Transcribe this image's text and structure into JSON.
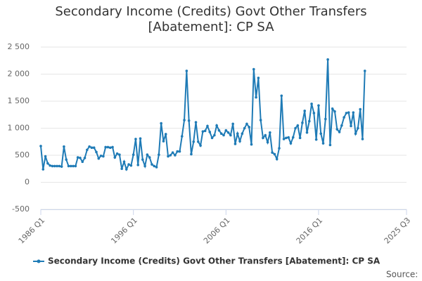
{
  "chart_data": {
    "type": "line",
    "title": "Secondary Income (Credits) Govt Other Transfers [Abatement]: CP SA",
    "source": "Source:",
    "x": [
      "1986 Q1",
      "1986 Q2",
      "1986 Q3",
      "1986 Q4",
      "1987 Q1",
      "1987 Q2",
      "1987 Q3",
      "1987 Q4",
      "1988 Q1",
      "1988 Q2",
      "1988 Q3",
      "1988 Q4",
      "1989 Q1",
      "1989 Q2",
      "1989 Q3",
      "1989 Q4",
      "1990 Q1",
      "1990 Q2",
      "1990 Q3",
      "1990 Q4",
      "1991 Q1",
      "1991 Q2",
      "1991 Q3",
      "1991 Q4",
      "1992 Q1",
      "1992 Q2",
      "1992 Q3",
      "1992 Q4",
      "1993 Q1",
      "1993 Q2",
      "1993 Q3",
      "1993 Q4",
      "1994 Q1",
      "1994 Q2",
      "1994 Q3",
      "1994 Q4",
      "1995 Q1",
      "1995 Q2",
      "1995 Q3",
      "1995 Q4",
      "1996 Q1",
      "1996 Q2",
      "1996 Q3",
      "1996 Q4",
      "1997 Q1",
      "1997 Q2",
      "1997 Q3",
      "1997 Q4",
      "1998 Q1",
      "1998 Q2",
      "1998 Q3",
      "1998 Q4",
      "1999 Q1",
      "1999 Q2",
      "1999 Q3",
      "1999 Q4",
      "2000 Q1",
      "2000 Q2",
      "2000 Q3",
      "2000 Q4",
      "2001 Q1",
      "2001 Q2",
      "2001 Q3",
      "2001 Q4",
      "2002 Q1",
      "2002 Q2",
      "2002 Q3",
      "2002 Q4",
      "2003 Q1",
      "2003 Q2",
      "2003 Q3",
      "2003 Q4",
      "2004 Q1",
      "2004 Q2",
      "2004 Q3",
      "2004 Q4",
      "2005 Q1",
      "2005 Q2",
      "2005 Q3",
      "2005 Q4",
      "2006 Q1",
      "2006 Q2",
      "2006 Q3",
      "2006 Q4",
      "2007 Q1",
      "2007 Q2",
      "2007 Q3",
      "2007 Q4",
      "2008 Q1",
      "2008 Q2",
      "2008 Q3",
      "2008 Q4",
      "2009 Q1",
      "2009 Q2",
      "2009 Q3",
      "2009 Q4",
      "2010 Q1",
      "2010 Q2",
      "2010 Q3",
      "2010 Q4",
      "2011 Q1",
      "2011 Q2",
      "2011 Q3",
      "2011 Q4",
      "2012 Q1",
      "2012 Q2",
      "2012 Q3",
      "2012 Q4",
      "2013 Q1",
      "2013 Q2",
      "2013 Q3",
      "2013 Q4",
      "2014 Q1",
      "2014 Q2",
      "2014 Q3",
      "2014 Q4",
      "2015 Q1",
      "2015 Q2",
      "2015 Q3",
      "2015 Q4",
      "2016 Q1",
      "2016 Q2",
      "2016 Q3",
      "2016 Q4",
      "2017 Q1",
      "2017 Q2",
      "2017 Q3",
      "2017 Q4",
      "2018 Q1",
      "2018 Q2",
      "2018 Q3",
      "2018 Q4",
      "2019 Q1",
      "2019 Q2",
      "2019 Q3",
      "2019 Q4",
      "2020 Q1",
      "2020 Q2",
      "2020 Q3",
      "2020 Q4",
      "2021 Q1"
    ],
    "series": [
      {
        "name": "Secondary Income (Credits) Govt Other Transfers [Abatement]: CP SA",
        "color": "#1f7bb6",
        "values": [
          670,
          240,
          480,
          350,
          310,
          300,
          300,
          300,
          300,
          290,
          660,
          420,
          300,
          300,
          300,
          300,
          460,
          450,
          380,
          450,
          600,
          660,
          640,
          640,
          560,
          440,
          490,
          480,
          650,
          650,
          640,
          650,
          460,
          530,
          510,
          250,
          380,
          240,
          330,
          310,
          510,
          800,
          320,
          810,
          420,
          300,
          510,
          460,
          330,
          300,
          280,
          510,
          1090,
          760,
          890,
          480,
          500,
          550,
          500,
          570,
          570,
          850,
          1150,
          2060,
          1140,
          520,
          750,
          1110,
          750,
          680,
          940,
          950,
          1040,
          930,
          820,
          870,
          1050,
          960,
          900,
          870,
          960,
          920,
          870,
          1080,
          710,
          900,
          760,
          900,
          1000,
          1080,
          1020,
          700,
          2090,
          1570,
          1930,
          1150,
          820,
          870,
          740,
          920,
          550,
          520,
          430,
          630,
          1600,
          800,
          820,
          830,
          720,
          830,
          1000,
          1050,
          820,
          1100,
          1320,
          920,
          1130,
          1450,
          1280,
          790,
          1420,
          900,
          720,
          1170,
          2270,
          690,
          1360,
          1310,
          980,
          930,
          1050,
          1200,
          1280,
          1290,
          1040,
          1290,
          900,
          1000,
          1350,
          800,
          2060
        ]
      }
    ],
    "xlim": [
      "1986 Q1",
      "2025 Q3"
    ],
    "xticks": [
      "1986 Q1",
      "1996 Q1",
      "2006 Q1",
      "2016 Q1",
      "2025 Q3"
    ],
    "ylim": [
      -500,
      2500
    ],
    "yticks": [
      {
        "value": 2500,
        "label": "2 500"
      },
      {
        "value": 2000,
        "label": "2 000"
      },
      {
        "value": 1500,
        "label": "1 500"
      },
      {
        "value": 1000,
        "label": "1 000"
      },
      500,
      0,
      -500
    ],
    "grid": true
  }
}
